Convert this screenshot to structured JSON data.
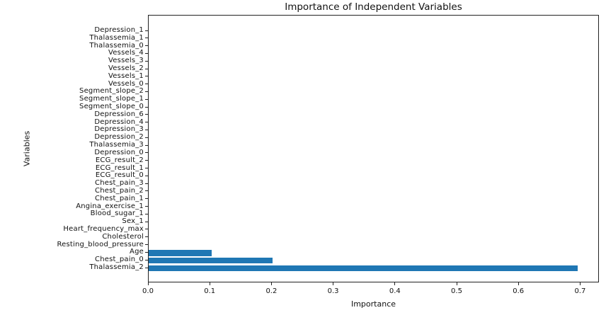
{
  "chart_data": {
    "type": "bar",
    "orientation": "horizontal",
    "title": "Importance of Independent Variables",
    "xlabel": "Importance",
    "ylabel": "Variables",
    "categories": [
      "Depression_1",
      "Thalassemia_1",
      "Thalassemia_0",
      "Vessels_4",
      "Vessels_3",
      "Vessels_2",
      "Vessels_1",
      "Vessels_0",
      "Segment_slope_2",
      "Segment_slope_1",
      "Segment_slope_0",
      "Depression_6",
      "Depression_4",
      "Depression_3",
      "Depression_2",
      "Thalassemia_3",
      "Depression_0",
      "ECG_result_2",
      "ECG_result_1",
      "ECG_result_0",
      "Chest_pain_3",
      "Chest_pain_2",
      "Chest_pain_1",
      "Angina_exercise_1",
      "Blood_sugar_1",
      "Sex_1",
      "Heart_frequency_max",
      "Cholesterol",
      "Resting_blood_pressure",
      "Age",
      "Chest_pain_0",
      "Thalassemia_2"
    ],
    "values": [
      0,
      0,
      0,
      0,
      0,
      0,
      0,
      0,
      0,
      0,
      0,
      0,
      0,
      0,
      0,
      0,
      0,
      0,
      0,
      0,
      0,
      0,
      0,
      0,
      0,
      0,
      0,
      0,
      0,
      0.102,
      0.201,
      0.695
    ],
    "xticks": [
      0.0,
      0.1,
      0.2,
      0.3,
      0.4,
      0.5,
      0.6,
      0.7
    ],
    "xtick_labels": [
      "0.0",
      "0.1",
      "0.2",
      "0.3",
      "0.4",
      "0.5",
      "0.6",
      "0.7"
    ],
    "xlim": [
      0,
      0.7305
    ],
    "grid": false,
    "legend": null,
    "bar_color": "#1f77b4"
  },
  "colors": {
    "bar": "#1f77b4",
    "spine": "#222222",
    "text": "#111111",
    "background": "#ffffff"
  }
}
